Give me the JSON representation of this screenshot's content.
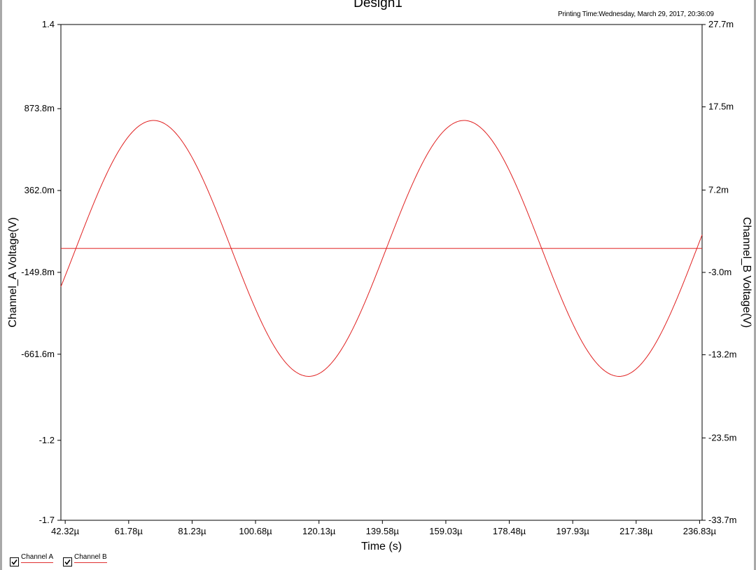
{
  "title": "Design1",
  "printing_time": "Printing Time:Wednesday, March 29, 2017, 20:36:09",
  "legend": [
    {
      "label": "Channel A",
      "checked": true
    },
    {
      "label": "Channel B",
      "checked": true
    }
  ],
  "colors": {
    "trace": "#e02020",
    "axes": "#000000",
    "legend_underline": "#e03030"
  },
  "chart_data": {
    "type": "line",
    "title": "Design1",
    "xlabel": "Time (s)",
    "ylabel": "Channel_A Voltage(V)",
    "y2label": "Channel_B Voltage(V)",
    "x_unit_scale": 1e-06,
    "xlim": [
      41.0,
      237.6
    ],
    "x_ticks": [
      42.32,
      61.78,
      81.23,
      100.68,
      120.13,
      139.58,
      159.03,
      178.48,
      197.93,
      217.38,
      236.83
    ],
    "x_tick_labels": [
      "42.32µ",
      "61.78µ",
      "81.23µ",
      "100.68µ",
      "120.13µ",
      "139.58µ",
      "159.03µ",
      "178.48µ",
      "197.93µ",
      "217.38µ",
      "236.83µ"
    ],
    "ylim": [
      -1.7,
      1.4
    ],
    "y_ticks": [
      1.4,
      0.8738,
      0.362,
      -0.1498,
      -0.6616,
      -1.2,
      -1.7
    ],
    "y_tick_labels": [
      "1.4",
      "873.8m",
      "362.0m",
      "-149.8m",
      "-661.6m",
      "-1.2",
      "-1.7"
    ],
    "y2lim": [
      -33.7,
      27.7
    ],
    "y2_ticks": [
      27.7,
      17.5,
      7.2,
      -3.0,
      -13.2,
      -23.5,
      -33.7
    ],
    "y2_tick_labels": [
      "27.7m",
      "17.5m",
      "7.2m",
      "-3.0m",
      "-13.2m",
      "-23.5m",
      "-33.7m"
    ],
    "grid": false,
    "legend_position": "bottom-left",
    "series": [
      {
        "name": "Channel A",
        "axis": "left",
        "waveform": "sine",
        "amplitude": 0.8,
        "offset": 0.0,
        "zero_crossing_rising": 45.6,
        "period": 95.2,
        "x_start": 41.0,
        "x_end": 237.6
      },
      {
        "name": "Channel B",
        "axis": "left",
        "waveform": "dc",
        "value": 0.0,
        "x_start": 41.0,
        "x_end": 237.6
      }
    ]
  }
}
